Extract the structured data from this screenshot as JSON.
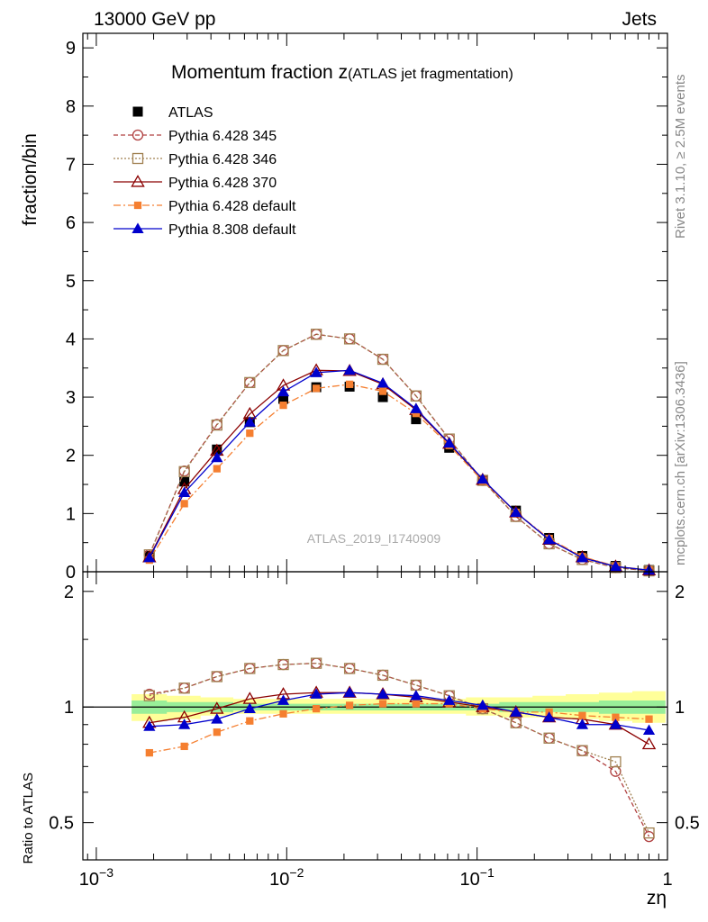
{
  "header": {
    "left": "13000 GeV pp",
    "right": "Jets"
  },
  "side_labels": {
    "rivet": "Rivet 3.1.10, ≥ 2.5M events",
    "mcplots": "mcplots.cern.ch [arXiv:1306.3436]"
  },
  "chart_data": [
    {
      "panel": "main",
      "type": "scatter",
      "title": "Momentum fraction z",
      "title_suffix": "(ATLAS jet fragmentation)",
      "ylabel": "fraction/bin",
      "xlabel": "zη",
      "watermark": "ATLAS_2019_I1740909",
      "xscale": "log",
      "xlim": [
        0.00085,
        1.0
      ],
      "ylim": [
        0,
        9.25
      ],
      "yticks": [
        0,
        1,
        2,
        3,
        4,
        5,
        6,
        7,
        8,
        9
      ],
      "legend_position": "top-left",
      "x": [
        0.0019,
        0.0029,
        0.0043,
        0.0064,
        0.0096,
        0.0143,
        0.0214,
        0.032,
        0.0478,
        0.0714,
        0.107,
        0.16,
        0.239,
        0.357,
        0.534,
        0.8
      ],
      "series": [
        {
          "name": "ATLAS",
          "color": "#000000",
          "style": "data",
          "values": [
            0.27,
            1.55,
            2.1,
            2.57,
            2.97,
            3.17,
            3.18,
            3.0,
            2.62,
            2.13,
            1.57,
            1.05,
            0.58,
            0.27,
            0.1,
            0.03
          ]
        },
        {
          "name": "Pythia 6.428 345",
          "color": "#b04040",
          "style": "circle-dashed",
          "values": [
            0.29,
            1.73,
            2.53,
            3.25,
            3.8,
            4.08,
            4.0,
            3.65,
            3.02,
            2.28,
            1.57,
            0.95,
            0.48,
            0.21,
            0.07,
            0.015
          ]
        },
        {
          "name": "Pythia 6.428 346",
          "color": "#a08050",
          "style": "square-dotted",
          "values": [
            0.29,
            1.72,
            2.52,
            3.25,
            3.8,
            4.08,
            4.0,
            3.65,
            3.02,
            2.28,
            1.57,
            0.95,
            0.48,
            0.21,
            0.072,
            0.015
          ]
        },
        {
          "name": "Pythia 6.428 370",
          "color": "#8b0000",
          "style": "triangle-open",
          "values": [
            0.25,
            1.42,
            2.08,
            2.71,
            3.2,
            3.46,
            3.45,
            3.22,
            2.78,
            2.2,
            1.58,
            1.02,
            0.55,
            0.25,
            0.09,
            0.025
          ]
        },
        {
          "name": "Pythia 6.428 default",
          "color": "#f57f30",
          "style": "square-dashdot",
          "values": [
            0.2,
            1.17,
            1.77,
            2.38,
            2.86,
            3.15,
            3.22,
            3.1,
            2.72,
            2.17,
            1.56,
            1.02,
            0.57,
            0.26,
            0.095,
            0.028
          ]
        },
        {
          "name": "Pythia 8.308 default",
          "color": "#0000cc",
          "style": "triangle-filled",
          "values": [
            0.24,
            1.36,
            1.96,
            2.57,
            3.09,
            3.42,
            3.46,
            3.24,
            2.8,
            2.21,
            1.59,
            1.02,
            0.55,
            0.24,
            0.09,
            0.027
          ]
        }
      ]
    },
    {
      "panel": "ratio",
      "type": "line",
      "ylabel": "Ratio to ATLAS",
      "ylim": [
        0.4,
        2.25
      ],
      "yticks": [
        0.5,
        1,
        2
      ],
      "reference_line": 1,
      "bands": [
        {
          "color": "#ffff99",
          "lo": [
            0.92,
            0.93,
            0.95,
            0.96,
            0.96,
            0.96,
            0.96,
            0.96,
            0.96,
            0.96,
            0.95,
            0.94,
            0.94,
            0.93,
            0.92,
            0.91
          ],
          "hi": [
            1.08,
            1.07,
            1.06,
            1.05,
            1.05,
            1.05,
            1.05,
            1.05,
            1.05,
            1.05,
            1.06,
            1.06,
            1.07,
            1.08,
            1.09,
            1.1
          ]
        },
        {
          "color": "#99ee99",
          "lo": [
            0.96,
            0.97,
            0.97,
            0.98,
            0.98,
            0.98,
            0.98,
            0.98,
            0.98,
            0.98,
            0.98,
            0.97,
            0.97,
            0.97,
            0.96,
            0.96
          ],
          "hi": [
            1.04,
            1.03,
            1.03,
            1.02,
            1.02,
            1.02,
            1.02,
            1.02,
            1.02,
            1.02,
            1.02,
            1.03,
            1.03,
            1.03,
            1.04,
            1.04
          ]
        }
      ],
      "series": [
        {
          "name": "Pythia 6.428 345",
          "values": [
            1.08,
            1.12,
            1.2,
            1.26,
            1.29,
            1.3,
            1.26,
            1.21,
            1.14,
            1.07,
            0.99,
            0.91,
            0.83,
            0.77,
            0.68,
            0.46
          ]
        },
        {
          "name": "Pythia 6.428 346",
          "values": [
            1.07,
            1.12,
            1.2,
            1.26,
            1.29,
            1.3,
            1.26,
            1.21,
            1.14,
            1.07,
            0.99,
            0.91,
            0.83,
            0.77,
            0.72,
            0.47
          ]
        },
        {
          "name": "Pythia 6.428 370",
          "values": [
            0.91,
            0.94,
            0.99,
            1.05,
            1.08,
            1.09,
            1.09,
            1.08,
            1.06,
            1.03,
            1.0,
            0.97,
            0.94,
            0.93,
            0.9,
            0.8
          ]
        },
        {
          "name": "Pythia 6.428 default",
          "values": [
            0.76,
            0.79,
            0.86,
            0.92,
            0.96,
            0.99,
            1.01,
            1.02,
            1.02,
            1.02,
            0.99,
            0.97,
            0.97,
            0.95,
            0.94,
            0.93
          ]
        },
        {
          "name": "Pythia 8.308 default",
          "values": [
            0.89,
            0.9,
            0.93,
            0.99,
            1.04,
            1.08,
            1.09,
            1.08,
            1.07,
            1.04,
            1.01,
            0.97,
            0.94,
            0.9,
            0.9,
            0.87
          ]
        }
      ]
    }
  ]
}
